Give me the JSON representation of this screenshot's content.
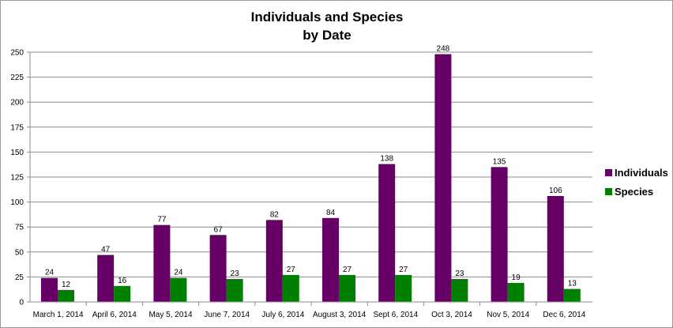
{
  "chart_data": {
    "type": "bar",
    "title": [
      "Individuals and Species",
      "by Date"
    ],
    "categories": [
      "March 1, 2014",
      "April 6, 2014",
      "May 5, 2014",
      "June 7, 2014",
      "July 6, 2014",
      "August 3, 2014",
      "Sept 6, 2014",
      "Oct 3, 2014",
      "Nov 5, 2014",
      "Dec 6, 2014"
    ],
    "series": [
      {
        "name": "Individuals",
        "color": "#660066",
        "values": [
          24,
          47,
          77,
          67,
          82,
          84,
          138,
          248,
          135,
          106
        ]
      },
      {
        "name": "Species",
        "color": "#008000",
        "values": [
          12,
          16,
          24,
          23,
          27,
          27,
          27,
          23,
          19,
          13
        ]
      }
    ],
    "ylim": [
      0,
      250
    ],
    "yticks": [
      0,
      25,
      50,
      75,
      100,
      125,
      150,
      175,
      200,
      225,
      250
    ],
    "xlabel": "",
    "ylabel": "",
    "grid": true,
    "legend": "right"
  }
}
